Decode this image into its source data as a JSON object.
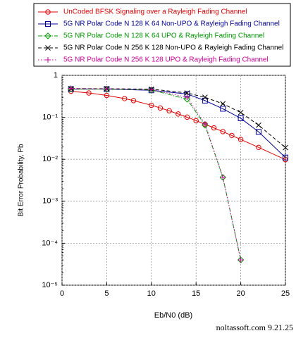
{
  "chart_data": {
    "type": "line",
    "xlabel": "Eb/N0 (dB)",
    "ylabel": "Bit Error Probability, Pb",
    "watermark": "noltassoft.com 9.21.25",
    "xlim": [
      0,
      25
    ],
    "xticks": [
      0,
      5,
      10,
      15,
      20,
      25
    ],
    "ylim": [
      1e-05,
      1
    ],
    "log_y": true,
    "grid": true,
    "legend": "top",
    "yticks": [
      {
        "value": 1,
        "label": "1"
      },
      {
        "value": 0.1,
        "label": "10⁻¹"
      },
      {
        "value": 0.01,
        "label": "10⁻²"
      },
      {
        "value": 0.001,
        "label": "10⁻³"
      },
      {
        "value": 0.0001,
        "label": "10⁻⁴"
      },
      {
        "value": 1e-05,
        "label": "10⁻⁵"
      }
    ],
    "series": [
      {
        "name": "UnCoded BFSK Signaling over a Rayleigh Fading Channel",
        "color": "#e00000",
        "marker": "circle",
        "dash": "solid",
        "x": [
          1,
          3,
          5,
          7,
          8,
          10,
          11,
          12,
          13,
          14,
          15,
          16,
          17,
          18,
          19,
          20,
          22,
          25
        ],
        "values": [
          0.417,
          0.38,
          0.333,
          0.279,
          0.25,
          0.194,
          0.167,
          0.143,
          0.12,
          0.101,
          0.0833,
          0.0685,
          0.056,
          0.0456,
          0.0369,
          0.0297,
          0.0192,
          0.0098
        ]
      },
      {
        "name": "5G NR Polar Code N 128 K 64 Non-UPO & Rayleigh Fading Channel",
        "color": "#000099",
        "marker": "square",
        "dash": "solid",
        "x": [
          1,
          5,
          10,
          14,
          16,
          18,
          20,
          22,
          25
        ],
        "values": [
          0.47,
          0.47,
          0.44,
          0.36,
          0.25,
          0.16,
          0.095,
          0.045,
          0.011
        ]
      },
      {
        "name": "5G NR Polar Code N 128 K 64 UPO  & Rayleigh Fading Channel",
        "color": "#009900",
        "marker": "diamond",
        "dash": "dashdot",
        "x": [
          1,
          5,
          10,
          14,
          16,
          18,
          20
        ],
        "values": [
          0.47,
          0.47,
          0.45,
          0.27,
          0.065,
          0.0037,
          4e-05
        ]
      },
      {
        "name": "5G NR Polar Code N 256 K 128 Non-UPO & Rayleigh Fading Channel",
        "color": "#000000",
        "marker": "x",
        "dash": "dashed",
        "x": [
          1,
          5,
          10,
          14,
          16,
          18,
          20,
          22,
          25
        ],
        "values": [
          0.48,
          0.48,
          0.47,
          0.38,
          0.3,
          0.21,
          0.13,
          0.065,
          0.019
        ]
      },
      {
        "name": "5G NR Polar Code N 256 K 128 UPO & Rayleigh Fading Channel",
        "color": "#cc0099",
        "marker": "plus",
        "dash": "dotted",
        "x": [
          1,
          5,
          10,
          14,
          16,
          18,
          20
        ],
        "values": [
          0.49,
          0.48,
          0.46,
          0.3,
          0.07,
          0.0037,
          4e-05
        ]
      }
    ]
  }
}
